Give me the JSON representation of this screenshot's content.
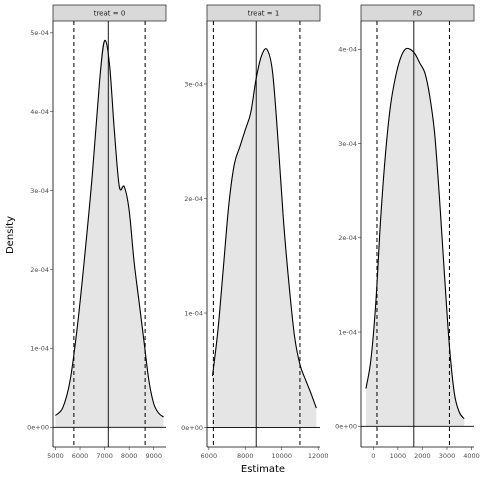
{
  "chart_data": {
    "type": "area",
    "xlabel": "Estimate",
    "ylabel": "Density",
    "legend": "none",
    "grid": false,
    "facets": [
      {
        "label": "treat = 0",
        "xlim": [
          4900,
          9500
        ],
        "ylim": [
          -2.5e-05,
          0.000515
        ],
        "xticks": [
          5000,
          6000,
          7000,
          8000,
          9000
        ],
        "xtick_labels": [
          "5000",
          "6000",
          "7000",
          "8000",
          "9000"
        ],
        "yticks": [
          0,
          0.0001,
          0.0002,
          0.0003,
          0.0004,
          0.0005
        ],
        "ytick_labels": [
          "0e+00",
          "1e-04",
          "2e-04",
          "3e-04",
          "4e-04",
          "5e-04"
        ],
        "mean": 7150,
        "ci": [
          5750,
          8650
        ],
        "x": [
          5000,
          5300,
          5600,
          5900,
          6200,
          6500,
          6800,
          7000,
          7200,
          7400,
          7600,
          7800,
          8000,
          8200,
          8400,
          8600,
          8800,
          9000,
          9200,
          9400
        ],
        "y": [
          1.5e-05,
          2.5e-05,
          6e-05,
          0.00013,
          0.00022,
          0.00032,
          0.00044,
          0.00049,
          0.00046,
          0.000375,
          0.000305,
          0.000305,
          0.000275,
          0.00021,
          0.00016,
          0.00011,
          6e-05,
          3e-05,
          1.8e-05,
          1.3e-05
        ]
      },
      {
        "label": "treat = 1",
        "xlim": [
          5900,
          12100
        ],
        "ylim": [
          -1.7e-05,
          0.000355
        ],
        "xticks": [
          6000,
          8000,
          10000,
          12000
        ],
        "xtick_labels": [
          "6000",
          "8000",
          "10000",
          "12000"
        ],
        "yticks": [
          0,
          0.0001,
          0.0002,
          0.0003
        ],
        "ytick_labels": [
          "0e+00",
          "1e-04",
          "2e-04",
          "3e-04"
        ],
        "mean": 8600,
        "ci": [
          6250,
          11000
        ],
        "x": [
          6200,
          6500,
          6800,
          7100,
          7400,
          7700,
          8000,
          8300,
          8600,
          8900,
          9200,
          9500,
          9800,
          10100,
          10400,
          10700,
          11000,
          11300,
          11600,
          11900
        ],
        "y": [
          4.5e-05,
          8.5e-05,
          0.00014,
          0.000195,
          0.00023,
          0.000245,
          0.00026,
          0.000275,
          0.000305,
          0.000325,
          0.00033,
          0.00031,
          0.00025,
          0.00018,
          0.000125,
          8e-05,
          5.5e-05,
          4.2e-05,
          3e-05,
          1.7e-05
        ]
      },
      {
        "label": "FD",
        "xlim": [
          -500,
          4100
        ],
        "ylim": [
          -2.2e-05,
          0.00043
        ],
        "xticks": [
          0,
          1000,
          2000,
          3000,
          4000
        ],
        "xtick_labels": [
          "0",
          "1000",
          "2000",
          "3000",
          "4000"
        ],
        "yticks": [
          0,
          0.0001,
          0.0002,
          0.0003,
          0.0004
        ],
        "ytick_labels": [
          "0e+00",
          "1e-04",
          "2e-04",
          "3e-04",
          "4e-04"
        ],
        "mean": 1650,
        "ci": [
          150,
          3100
        ],
        "x": [
          -300,
          -100,
          100,
          300,
          500,
          700,
          900,
          1100,
          1300,
          1500,
          1700,
          1900,
          2100,
          2300,
          2500,
          2700,
          2900,
          3100,
          3300,
          3500,
          3700
        ],
        "y": [
          4e-05,
          7e-05,
          0.00013,
          0.00022,
          0.00029,
          0.00034,
          0.00037,
          0.00039,
          0.0004,
          0.0004,
          0.000395,
          0.000385,
          0.000375,
          0.00035,
          0.00031,
          0.00024,
          0.00016,
          8.5e-05,
          3.5e-05,
          1.5e-05,
          8e-06
        ]
      }
    ]
  }
}
